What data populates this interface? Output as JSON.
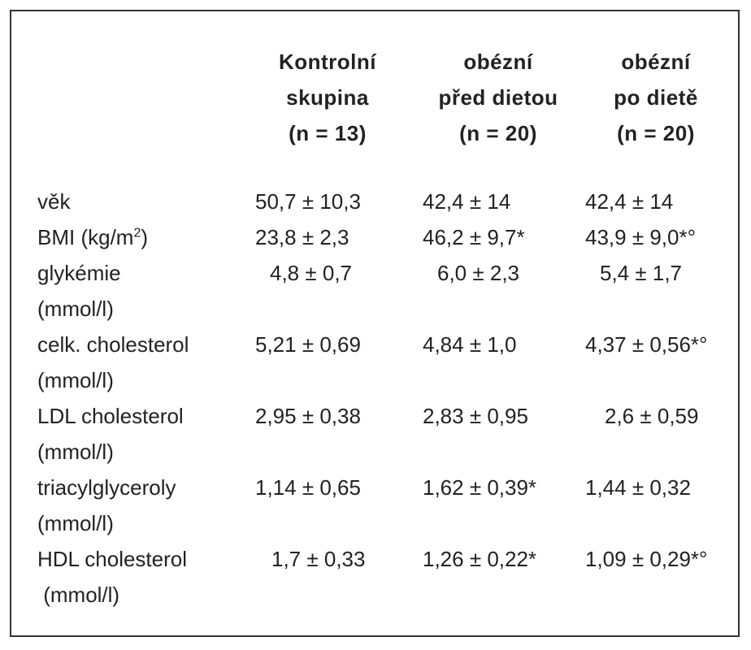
{
  "columns": [
    {
      "line1": "Kontrolní",
      "line2": "skupina",
      "line3": "(n = 13)"
    },
    {
      "line1": "obézní",
      "line2": "před dietou",
      "line3": "(n = 20)"
    },
    {
      "line1": "obézní",
      "line2": "po dietě",
      "line3": "(n = 20)"
    }
  ],
  "rows": [
    {
      "label": "věk",
      "unit": "",
      "values": [
        "50,7 ± 10,3",
        "42,4 ± 14",
        "42,4 ± 14"
      ]
    },
    {
      "label": "BMI (kg/m",
      "sup": "2",
      "label_end": ")",
      "unit": "",
      "values": [
        "23,8 ± 2,3",
        "46,2 ± 9,7*",
        "43,9 ± 9,0*°"
      ]
    },
    {
      "label": "glykémie",
      "unit": "(mmol/l)",
      "values": [
        "4,8 ± 0,7",
        "6,0 ± 2,3",
        "5,4 ± 1,7"
      ]
    },
    {
      "label": "celk. cholesterol",
      "unit": "(mmol/l)",
      "values": [
        "5,21 ± 0,69",
        "4,84 ± 1,0",
        "4,37 ± 0,56*°"
      ]
    },
    {
      "label": "LDL cholesterol",
      "unit": "(mmol/l)",
      "values": [
        "2,95 ± 0,38",
        "2,83 ± 0,95",
        "2,6 ± 0,59"
      ]
    },
    {
      "label": "triacylglyceroly",
      "unit": "(mmol/l)",
      "values": [
        "1,14 ± 0,65",
        "1,62 ± 0,39*",
        "1,44 ± 0,32"
      ]
    },
    {
      "label": "HDL cholesterol",
      "unit": " (mmol/l)",
      "values": [
        "1,7 ± 0,33",
        "1,26 ± 0,22*",
        "1,09 ± 0,29*°"
      ]
    }
  ]
}
